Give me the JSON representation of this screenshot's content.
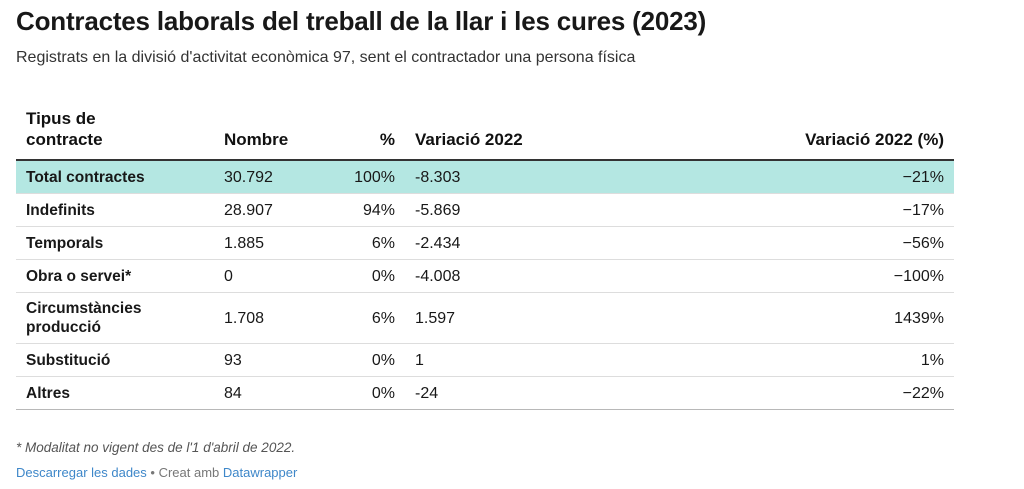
{
  "title": "Contractes laborals del treball de la llar i les cures (2023)",
  "subtitle": "Registrats en la divisió d'activitat econòmica 97, sent el contractador una persona física",
  "chart_data": {
    "type": "table",
    "columns": [
      "Tipus de contracte",
      "Nombre",
      "%",
      "Variació 2022",
      "Variació 2022 (%)"
    ],
    "rows": [
      {
        "label": "Total contractes",
        "nombre": "30.792",
        "pct": "100%",
        "var": "-8.303",
        "var_pct": "−21%",
        "highlight": true
      },
      {
        "label": "Indefinits",
        "nombre": "28.907",
        "pct": "94%",
        "var": "-5.869",
        "var_pct": "−17%"
      },
      {
        "label": "Temporals",
        "nombre": "1.885",
        "pct": "6%",
        "var": "-2.434",
        "var_pct": "−56%"
      },
      {
        "label": "Obra o servei*",
        "nombre": "0",
        "pct": "0%",
        "var": "-4.008",
        "var_pct": "−100%"
      },
      {
        "label": "Circumstàncies producció",
        "nombre": "1.708",
        "pct": "6%",
        "var": "1.597",
        "var_pct": "1439%"
      },
      {
        "label": "Substitució",
        "nombre": "93",
        "pct": "0%",
        "var": "1",
        "var_pct": "1%"
      },
      {
        "label": "Altres",
        "nombre": "84",
        "pct": "0%",
        "var": "-24",
        "var_pct": "−22%"
      }
    ]
  },
  "footnote": "* Modalitat no vigent des de l'1 d'abril de 2022.",
  "footer": {
    "download_label": "Descarregar les dades",
    "separator": " • ",
    "created_with": "Creat amb ",
    "tool_name": "Datawrapper"
  },
  "colors": {
    "highlight_row": "#b4e7e2",
    "link": "#3e87c9"
  }
}
